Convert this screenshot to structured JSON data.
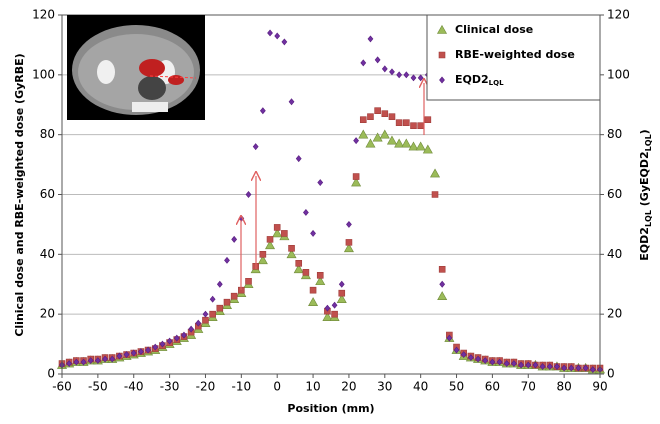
{
  "chart_data": {
    "type": "scatter",
    "y_label": "Clinical dose and RBE-weighted dose (GyRBE)",
    "y2_label_parts": [
      "EQD2",
      "LQL",
      " (GyEQD2",
      "LQL",
      ")"
    ],
    "x_label": "Position (mm)",
    "x": [
      -60,
      -58,
      -56,
      -54,
      -52,
      -50,
      -48,
      -46,
      -44,
      -42,
      -40,
      -38,
      -36,
      -34,
      -32,
      -30,
      -28,
      -26,
      -24,
      -22,
      -20,
      -18,
      -16,
      -14,
      -12,
      -10,
      -8,
      -6,
      -4,
      -2,
      0,
      2,
      4,
      6,
      8,
      10,
      12,
      14,
      16,
      18,
      20,
      22,
      24,
      26,
      28,
      30,
      32,
      34,
      36,
      38,
      40,
      42,
      44,
      46,
      48,
      50,
      52,
      54,
      56,
      58,
      60,
      62,
      64,
      66,
      68,
      70,
      72,
      74,
      76,
      78,
      80,
      82,
      84,
      86,
      88,
      90
    ],
    "series": [
      {
        "name": "Clinical dose",
        "color": "#9bbb59",
        "marker": "triangle",
        "values": [
          3,
          3.5,
          4,
          4,
          4.5,
          4.5,
          5,
          5,
          5.5,
          6,
          6.5,
          7,
          7.5,
          8,
          9,
          10,
          11,
          12,
          13,
          15,
          17,
          19,
          21,
          23,
          25,
          27,
          30,
          35,
          38,
          43,
          47,
          46,
          40,
          35,
          33,
          24,
          31,
          19,
          19,
          25,
          42,
          64,
          80,
          77,
          79,
          80,
          78,
          77,
          77,
          76,
          76,
          75,
          67,
          26,
          12,
          8,
          6,
          5.5,
          5,
          4.5,
          4,
          4,
          3.5,
          3.5,
          3,
          3,
          3,
          2.5,
          2.5,
          2.5,
          2,
          2,
          2,
          2,
          1.5,
          1.5
        ]
      },
      {
        "name": "RBE-weighted dose",
        "color": "#c0504d",
        "marker": "square",
        "values": [
          3.5,
          4,
          4.5,
          4.5,
          5,
          5,
          5.5,
          5.5,
          6,
          6.5,
          7,
          7.5,
          8,
          8.5,
          9.5,
          10.5,
          11.5,
          12.5,
          14,
          16,
          18,
          20,
          22,
          24,
          26,
          28,
          31,
          36,
          40,
          45,
          49,
          47,
          42,
          37,
          34,
          28,
          33,
          21,
          20,
          27,
          44,
          66,
          85,
          86,
          88,
          87,
          86,
          84,
          84,
          83,
          83,
          85,
          60,
          35,
          13,
          9,
          7,
          6,
          5.5,
          5,
          4.5,
          4.5,
          4,
          4,
          3.5,
          3.5,
          3,
          3,
          3,
          2.5,
          2.5,
          2.5,
          2,
          2,
          2,
          2
        ]
      },
      {
        "name": "EQD2",
        "name_sub": "LQL",
        "color": "#7030a0",
        "marker": "diamond",
        "axis": "y2",
        "values": [
          3,
          3.5,
          4,
          4,
          4.5,
          4.5,
          5,
          5,
          6,
          6.5,
          7,
          7.5,
          8,
          9,
          10,
          11,
          12,
          13,
          15,
          17,
          20,
          25,
          30,
          38,
          45,
          52,
          60,
          76,
          88,
          114,
          113,
          111,
          91,
          72,
          54,
          47,
          64,
          22,
          23,
          30,
          50,
          78,
          104,
          112,
          105,
          102,
          101,
          100,
          100,
          99,
          99,
          100,
          98,
          30,
          12,
          8,
          6.5,
          5.5,
          5,
          4.5,
          4,
          4,
          3.5,
          3.5,
          3,
          3,
          3,
          2.5,
          2.5,
          2.5,
          2,
          2,
          2,
          2,
          1.5,
          1.5
        ]
      }
    ],
    "xlim": [
      -60,
      90
    ],
    "xticks": [
      -60,
      -50,
      -40,
      -30,
      -20,
      -10,
      0,
      10,
      20,
      30,
      40,
      50,
      60,
      70,
      80,
      90
    ],
    "ylim": [
      0,
      120
    ],
    "yticks": [
      0,
      20,
      40,
      60,
      80,
      100,
      120
    ],
    "y2lim": [
      0,
      120
    ],
    "y2ticks": [
      0,
      20,
      40,
      60,
      80,
      100,
      120
    ],
    "grid": true,
    "legend": "upper right"
  }
}
